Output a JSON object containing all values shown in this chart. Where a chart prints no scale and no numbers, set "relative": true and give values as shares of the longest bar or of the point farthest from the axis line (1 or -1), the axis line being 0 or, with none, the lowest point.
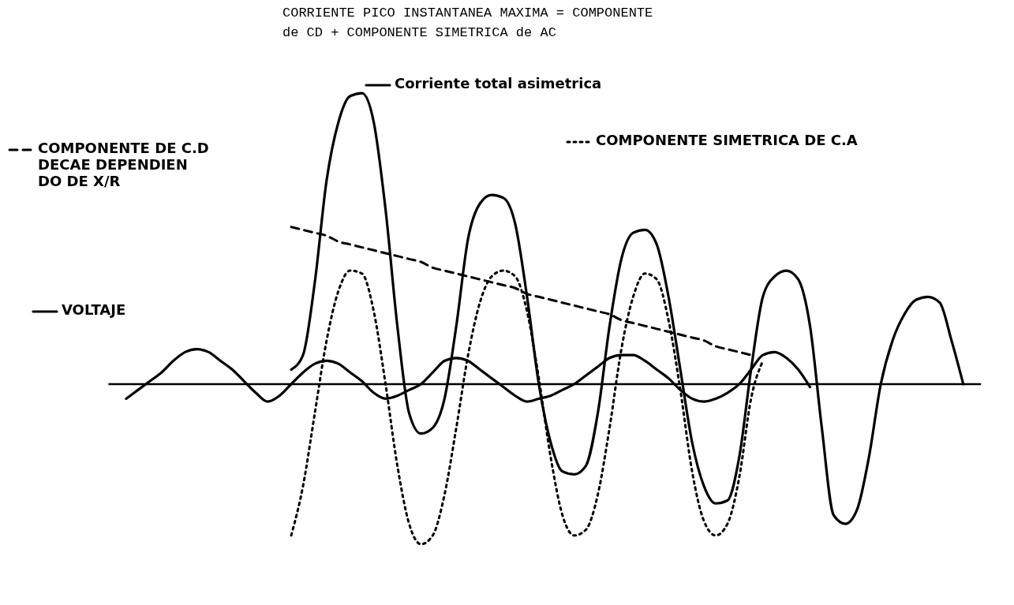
{
  "chart_data": {
    "type": "line",
    "relative": true,
    "legend": "top",
    "annotations": [
      "CORRIENTE PICO INSTANTANEA MAXIMA = COMPONENTE",
      "de CD + COMPONENTE SIMETRICA de  AC"
    ],
    "categories": [
      null,
      null,
      null,
      null,
      null,
      null,
      null,
      null,
      null,
      null,
      null,
      null,
      null,
      null,
      null,
      null,
      null,
      null,
      null,
      null,
      null,
      null,
      null,
      null,
      null,
      null,
      null,
      null,
      null,
      null,
      null,
      null,
      null,
      null,
      null,
      null,
      null,
      null,
      null,
      null,
      null,
      null,
      null,
      null,
      null,
      null,
      null,
      null,
      null,
      null,
      null,
      null,
      null,
      null,
      null,
      null,
      null,
      null,
      null,
      null,
      null,
      null,
      null,
      null,
      null,
      null,
      null,
      null,
      null,
      null,
      null,
      null
    ],
    "series": [
      {
        "name": "Corriente total asimetrica",
        "color": "#000000",
        "line_style": "solid",
        "values": [
          null,
          null,
          null,
          null,
          null,
          null,
          null,
          null,
          null,
          null,
          null,
          null,
          null,
          null,
          0.05,
          0.1,
          0.35,
          0.7,
          0.9,
          0.99,
          1.0,
          0.9,
          0.6,
          0.2,
          -0.1,
          -0.17,
          -0.15,
          -0.05,
          0.2,
          0.5,
          0.62,
          0.65,
          0.64,
          0.55,
          0.3,
          0.0,
          -0.2,
          -0.3,
          -0.31,
          -0.28,
          -0.1,
          0.2,
          0.43,
          0.52,
          0.53,
          0.48,
          0.3,
          0.05,
          -0.2,
          -0.35,
          -0.41,
          -0.4,
          -0.25,
          0.05,
          0.3,
          0.37,
          0.39,
          0.36,
          0.2,
          -0.15,
          -0.45,
          -0.48,
          -0.43,
          -0.25,
          0.0,
          0.15,
          0.24,
          0.29,
          0.3,
          0.28,
          0.15,
          0.0
        ]
      },
      {
        "name": "COMPONENTE SIMETRICA DE C.A",
        "color": "#000000",
        "line_style": "dotted",
        "values": [
          null,
          null,
          null,
          null,
          null,
          null,
          null,
          null,
          null,
          null,
          null,
          null,
          null,
          null,
          -0.52,
          -0.35,
          -0.1,
          0.15,
          0.32,
          0.39,
          0.38,
          0.25,
          0.0,
          -0.28,
          -0.48,
          -0.55,
          -0.52,
          -0.38,
          -0.15,
          0.1,
          0.28,
          0.37,
          0.39,
          0.37,
          0.25,
          0.02,
          -0.25,
          -0.45,
          -0.52,
          -0.5,
          -0.38,
          -0.15,
          0.12,
          0.3,
          0.38,
          0.36,
          0.22,
          -0.02,
          -0.3,
          -0.47,
          -0.52,
          -0.48,
          -0.32,
          -0.05,
          0.08,
          null,
          null,
          null,
          null,
          null,
          null,
          null,
          null,
          null,
          null,
          null,
          null,
          null,
          null,
          null,
          null,
          null
        ]
      },
      {
        "name": "COMPONENTE DE C.D\nDECAE  DEPENDIEN\nDO DE  X/R",
        "color": "#000000",
        "line_style": "dashed",
        "values": [
          null,
          null,
          null,
          null,
          null,
          null,
          null,
          null,
          null,
          null,
          null,
          null,
          null,
          null,
          0.54,
          0.53,
          0.52,
          0.51,
          0.49,
          0.48,
          0.47,
          0.46,
          0.45,
          0.44,
          0.43,
          0.42,
          0.4,
          0.39,
          0.38,
          0.37,
          0.36,
          0.35,
          0.34,
          0.33,
          0.31,
          0.3,
          0.29,
          0.28,
          0.27,
          0.26,
          0.25,
          0.24,
          0.22,
          0.21,
          0.2,
          0.19,
          0.18,
          0.17,
          0.16,
          0.15,
          0.13,
          0.12,
          0.11,
          0.1,
          null,
          null,
          null,
          null,
          null,
          null,
          null,
          null,
          null,
          null,
          null,
          null,
          null,
          null,
          null,
          null,
          null,
          null
        ]
      },
      {
        "name": "VOLTAJE",
        "color": "#000000",
        "line_style": "solid",
        "values": [
          -0.05,
          -0.02,
          0.01,
          0.04,
          0.08,
          0.11,
          0.12,
          0.11,
          0.08,
          0.05,
          0.01,
          -0.03,
          -0.06,
          -0.04,
          0.0,
          0.04,
          0.07,
          0.08,
          0.07,
          0.04,
          0.01,
          -0.03,
          -0.05,
          -0.04,
          -0.02,
          0.0,
          0.04,
          0.08,
          0.09,
          0.08,
          0.05,
          0.02,
          -0.01,
          -0.04,
          -0.06,
          -0.05,
          -0.04,
          -0.02,
          0.0,
          0.03,
          0.06,
          0.09,
          0.1,
          0.1,
          0.08,
          0.05,
          0.02,
          -0.02,
          -0.05,
          -0.06,
          -0.05,
          -0.03,
          0.0,
          0.05,
          0.1,
          0.11,
          0.09,
          0.05,
          -0.01,
          null,
          null,
          null,
          null,
          null,
          null,
          null,
          null,
          null,
          null,
          null,
          null,
          null
        ]
      }
    ]
  }
}
